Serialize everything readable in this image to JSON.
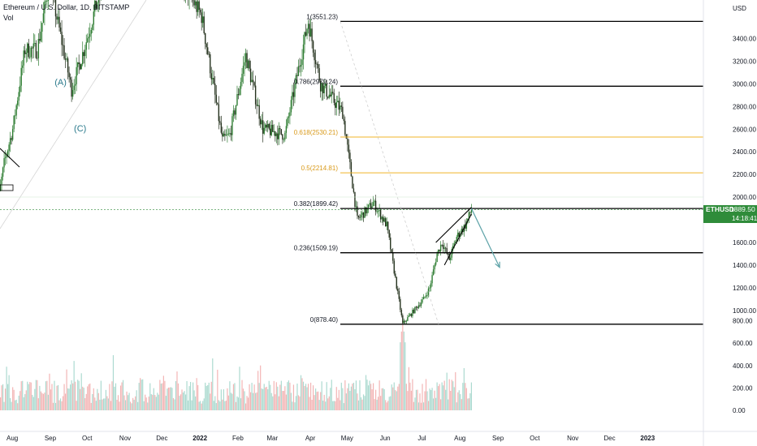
{
  "header": {
    "symbol_title": "Ethereum / U.S. Dollar, 1D, BITSTAMP",
    "volume_label": "Vol"
  },
  "price_axis": {
    "currency": "USD",
    "ticks": [
      "3400.00",
      "3200.00",
      "3000.00",
      "2800.00",
      "2600.00",
      "2400.00",
      "2200.00",
      "2000.00",
      "1800.00",
      "1600.00",
      "1400.00",
      "1200.00",
      "1000.00"
    ],
    "tick_values": [
      3400,
      3200,
      3000,
      2800,
      2600,
      2400,
      2200,
      2000,
      1800,
      1600,
      1400,
      1200,
      1000
    ]
  },
  "volume_axis": {
    "ticks": [
      "800.00",
      "600.00",
      "400.00",
      "200.00",
      "0.00"
    ],
    "tick_values": [
      800,
      600,
      400,
      200,
      0
    ]
  },
  "time_axis": {
    "labels": [
      "Aug",
      "Sep",
      "Oct",
      "Nov",
      "Dec",
      "2022",
      "Feb",
      "Mar",
      "Apr",
      "May",
      "Jun",
      "Jul",
      "Aug",
      "Sep",
      "Oct",
      "Nov",
      "Dec",
      "2023"
    ],
    "bold": [
      "2022",
      "2023"
    ]
  },
  "price_tag": {
    "symbol": "ETHUSD",
    "price": "1889.50",
    "countdown": "14:18:41",
    "color": "#2f8c3a"
  },
  "wave_labels": [
    "(A)",
    "(C)"
  ],
  "colors": {
    "up": "#2e7d32",
    "down": "#26331f",
    "volume_up": "#9ed4c8",
    "volume_down": "#f1a8a8",
    "fib_black": "#000000",
    "fib_gold": "#f0b429",
    "projection": "#5ea3a8"
  },
  "chart_data": {
    "type": "candlestick",
    "title": "Ethereum / U.S. Dollar, 1D, BITSTAMP",
    "ylabel": "USD",
    "ylim": [
      800,
      3600
    ],
    "volume_ylim": [
      0,
      900
    ],
    "fibonacci": [
      {
        "label": "1(3551.23)",
        "level": 1,
        "price": 3551.23,
        "color": "#000000"
      },
      {
        "label": "0.786(2979.24)",
        "level": 0.786,
        "price": 2979.24,
        "color": "#000000"
      },
      {
        "label": "0.618(2530.21)",
        "level": 0.618,
        "price": 2530.21,
        "color": "#f0b429"
      },
      {
        "label": "0.5(2214.81)",
        "level": 0.5,
        "price": 2214.81,
        "color": "#f0b429"
      },
      {
        "label": "0.382(1899.42)",
        "level": 0.382,
        "price": 1899.42,
        "color": "#000000"
      },
      {
        "label": "0.236(1509.19)",
        "level": 0.236,
        "price": 1509.19,
        "color": "#000000"
      },
      {
        "label": "0(878.40)",
        "level": 0,
        "price": 878.4,
        "color": "#000000"
      }
    ],
    "price_path": [
      {
        "date": "2021-07-20",
        "price": 1750
      },
      {
        "date": "2021-07-28",
        "price": 2300
      },
      {
        "date": "2021-08-04",
        "price": 2600
      },
      {
        "date": "2021-08-14",
        "price": 3300
      },
      {
        "date": "2021-08-24",
        "price": 3300
      },
      {
        "date": "2021-09-03",
        "price": 3900
      },
      {
        "date": "2021-09-21",
        "price": 2950
      },
      {
        "date": "2021-10-01",
        "price": 3300
      },
      {
        "date": "2021-10-15",
        "price": 3850
      },
      {
        "date": "2021-11-10",
        "price": 4800
      },
      {
        "date": "2021-12-04",
        "price": 4100
      },
      {
        "date": "2021-12-20",
        "price": 3900
      },
      {
        "date": "2022-01-05",
        "price": 3600
      },
      {
        "date": "2022-01-22",
        "price": 2500
      },
      {
        "date": "2022-01-28",
        "price": 2550
      },
      {
        "date": "2022-02-10",
        "price": 3250
      },
      {
        "date": "2022-02-24",
        "price": 2600
      },
      {
        "date": "2022-03-14",
        "price": 2550
      },
      {
        "date": "2022-04-02",
        "price": 3551
      },
      {
        "date": "2022-04-12",
        "price": 3000
      },
      {
        "date": "2022-04-30",
        "price": 2750
      },
      {
        "date": "2022-05-12",
        "price": 1800
      },
      {
        "date": "2022-05-25",
        "price": 1950
      },
      {
        "date": "2022-06-05",
        "price": 1750
      },
      {
        "date": "2022-06-18",
        "price": 880
      },
      {
        "date": "2022-07-01",
        "price": 1050
      },
      {
        "date": "2022-07-05",
        "price": 1100
      },
      {
        "date": "2022-07-10",
        "price": 1200
      },
      {
        "date": "2022-07-16",
        "price": 1500
      },
      {
        "date": "2022-07-20",
        "price": 1600
      },
      {
        "date": "2022-07-26",
        "price": 1450
      },
      {
        "date": "2022-08-01",
        "price": 1650
      },
      {
        "date": "2022-08-08",
        "price": 1750
      },
      {
        "date": "2022-08-13",
        "price": 1889.5
      }
    ],
    "projection": [
      {
        "date": "2022-08-13",
        "price": 1900
      },
      {
        "date": "2022-09-05",
        "price": 1380
      }
    ],
    "rising_wedge": [
      {
        "date": "2022-07-15",
        "price": 1600,
        "date2": "2022-08-13",
        "price2": 1910
      },
      {
        "date": "2022-07-22",
        "price": 1400,
        "date2": "2022-08-13",
        "price2": 1850
      }
    ],
    "volume_peak": {
      "date": "2022-06-18",
      "value": 800
    },
    "waves": [
      {
        "label": "(A)",
        "date": "2021-09-12",
        "price": 2990
      },
      {
        "label": "(C)",
        "date": "2021-09-28",
        "price": 2580
      }
    ]
  }
}
